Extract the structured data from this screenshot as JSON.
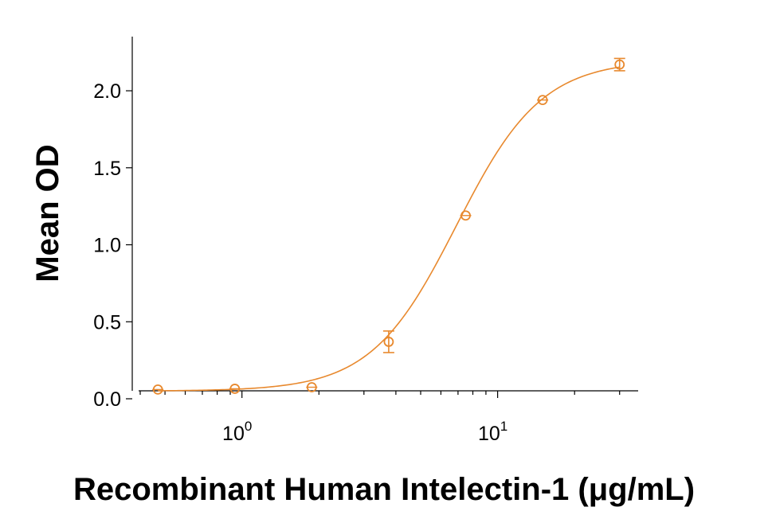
{
  "chart_data": {
    "type": "scatter",
    "title": "",
    "xlabel": "Recombinant Human Intelectin-1 (μg/mL)",
    "ylabel": "Mean OD",
    "x_scale": "log",
    "xlim": [
      0.4,
      33
    ],
    "ylim": [
      0,
      2.3
    ],
    "x_ticks": [
      {
        "value": 1,
        "base": "10",
        "exp": "0"
      },
      {
        "value": 10,
        "base": "10",
        "exp": "1"
      }
    ],
    "y_ticks": [
      {
        "value": 0,
        "label": "0.0"
      },
      {
        "value": 0.5,
        "label": "0.5"
      },
      {
        "value": 1.0,
        "label": "1.0"
      },
      {
        "value": 1.5,
        "label": "1.5"
      },
      {
        "value": 2.0,
        "label": "2.0"
      }
    ],
    "series": [
      {
        "color": "#E8892E",
        "marker": "open-circle",
        "points": [
          {
            "x": 0.469,
            "y": 0.06,
            "err": 0.0
          },
          {
            "x": 0.938,
            "y": 0.065,
            "err": 0.0
          },
          {
            "x": 1.875,
            "y": 0.075,
            "err": 0.0
          },
          {
            "x": 3.75,
            "y": 0.37,
            "err": 0.07
          },
          {
            "x": 7.5,
            "y": 1.19,
            "err": 0.0
          },
          {
            "x": 15,
            "y": 1.94,
            "err": 0.0
          },
          {
            "x": 30,
            "y": 2.17,
            "err": 0.04
          }
        ],
        "fit": {
          "bottom": 0.05,
          "top": 2.2,
          "ec50": 6.9,
          "hill": 2.6
        }
      }
    ]
  }
}
